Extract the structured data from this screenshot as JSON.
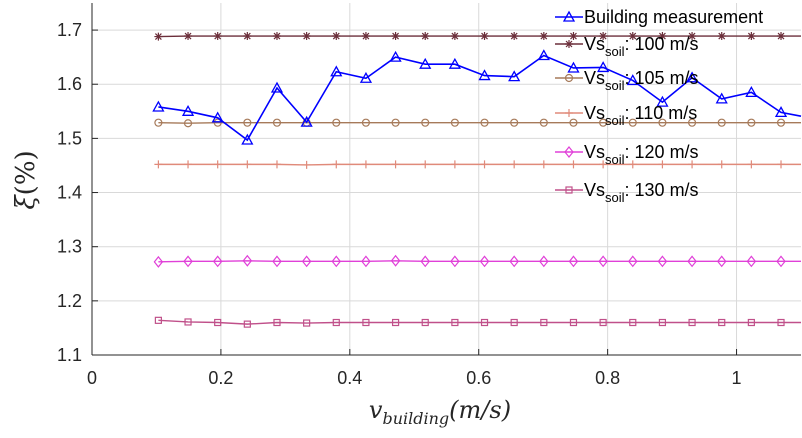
{
  "chart_data": {
    "type": "line",
    "title": "",
    "xlabel": "v_building(m/s)",
    "ylabel": "ξ(%)",
    "xlim": [
      0,
      1.1
    ],
    "ylim": [
      1.1,
      1.75
    ],
    "xticks": [
      0,
      0.2,
      0.4,
      0.6,
      0.8,
      1
    ],
    "xtick_labels": [
      "0",
      "0.2",
      "0.4",
      "0.6",
      "0.8",
      "1"
    ],
    "yticks": [
      1.1,
      1.2,
      1.3,
      1.4,
      1.5,
      1.6,
      1.7
    ],
    "ytick_labels": [
      "1.1",
      "1.2",
      "1.3",
      "1.4",
      "1.5",
      "1.6",
      "1.7"
    ],
    "grid": true,
    "legend_position": "top-right",
    "x": [
      0.103,
      0.149,
      0.195,
      0.241,
      0.287,
      0.333,
      0.379,
      0.425,
      0.471,
      0.517,
      0.563,
      0.609,
      0.655,
      0.701,
      0.747,
      0.793,
      0.839,
      0.885,
      0.931,
      0.977,
      1.023,
      1.069,
      1.1
    ],
    "series": [
      {
        "name": "Building measurement",
        "color": "#0000ff",
        "marker": "triangle",
        "values": [
          1.558,
          1.55,
          1.538,
          1.497,
          1.593,
          1.53,
          1.623,
          1.611,
          1.65,
          1.637,
          1.637,
          1.616,
          1.614,
          1.653,
          1.63,
          1.631,
          1.607,
          1.567,
          1.612,
          1.573,
          1.585,
          1.548,
          1.541
        ]
      },
      {
        "name": "Vs_soil: 100 m/s",
        "name_main": "Vs",
        "name_sub": "soil",
        "name_tail": ": 100 m/s",
        "color": "#6b2e3a",
        "marker": "star",
        "values": [
          1.688,
          1.689,
          1.689,
          1.689,
          1.689,
          1.689,
          1.689,
          1.689,
          1.689,
          1.689,
          1.689,
          1.689,
          1.689,
          1.689,
          1.689,
          1.689,
          1.689,
          1.689,
          1.689,
          1.689,
          1.689,
          1.689,
          1.689
        ]
      },
      {
        "name": "Vs_soil: 105 m/s",
        "name_main": "Vs",
        "name_sub": "soil",
        "name_tail": ": 105 m/s",
        "color": "#a67a5a",
        "marker": "circle",
        "values": [
          1.529,
          1.528,
          1.529,
          1.529,
          1.529,
          1.529,
          1.529,
          1.529,
          1.529,
          1.529,
          1.529,
          1.529,
          1.529,
          1.529,
          1.529,
          1.529,
          1.529,
          1.529,
          1.529,
          1.529,
          1.529,
          1.529,
          1.529
        ]
      },
      {
        "name": "Vs_soil: 110 m/s",
        "name_main": "Vs",
        "name_sub": "soil",
        "name_tail": ": 110 m/s",
        "color": "#e08a7a",
        "marker": "plus",
        "values": [
          1.452,
          1.452,
          1.452,
          1.452,
          1.452,
          1.451,
          1.452,
          1.452,
          1.452,
          1.452,
          1.452,
          1.452,
          1.452,
          1.452,
          1.452,
          1.452,
          1.452,
          1.452,
          1.452,
          1.452,
          1.452,
          1.452,
          1.452
        ]
      },
      {
        "name": "Vs_soil: 120 m/s",
        "name_main": "Vs",
        "name_sub": "soil",
        "name_tail": ": 120 m/s",
        "color": "#e040d8",
        "marker": "diamond",
        "values": [
          1.272,
          1.273,
          1.273,
          1.274,
          1.273,
          1.273,
          1.273,
          1.273,
          1.274,
          1.273,
          1.273,
          1.273,
          1.273,
          1.273,
          1.273,
          1.273,
          1.273,
          1.273,
          1.273,
          1.273,
          1.273,
          1.273,
          1.273
        ]
      },
      {
        "name": "Vs_soil: 130 m/s",
        "name_main": "Vs",
        "name_sub": "soil",
        "name_tail": ": 130 m/s",
        "color": "#c0508a",
        "marker": "square",
        "values": [
          1.164,
          1.161,
          1.16,
          1.157,
          1.16,
          1.159,
          1.16,
          1.16,
          1.16,
          1.16,
          1.16,
          1.16,
          1.16,
          1.16,
          1.16,
          1.16,
          1.16,
          1.16,
          1.16,
          1.16,
          1.16,
          1.16,
          1.16
        ]
      }
    ],
    "axis_label_x_main": "v",
    "axis_label_x_sub": "building",
    "axis_label_x_tail": "(m/s)",
    "axis_label_y_main": "ξ",
    "axis_label_y_tail": "(%)"
  }
}
